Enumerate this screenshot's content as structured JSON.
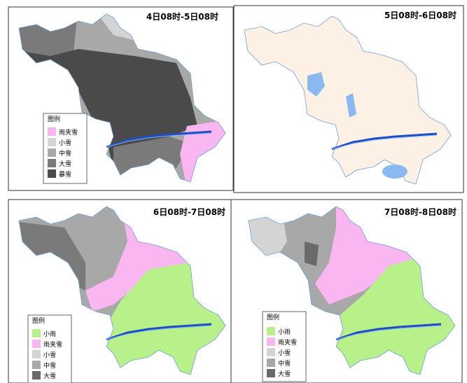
{
  "panels": [
    {
      "title": "4日08时-5日08时",
      "legend": {
        "title": "图例",
        "items": [
          "雨夹雪",
          "小雪",
          "中雪",
          "大雪",
          "暴雪"
        ]
      }
    },
    {
      "title": "5日08时-6日08时"
    },
    {
      "title": "6日08时-7日08时",
      "legend": {
        "title": "图例",
        "items": [
          "小雨",
          "雨夹雪",
          "小雪",
          "中雪",
          "大雪"
        ]
      }
    },
    {
      "title": "7日08时-8日08时",
      "legend": {
        "title": "图例",
        "items": [
          "小雨",
          "雨夹雪",
          "小雪",
          "中雪",
          "大雪"
        ]
      }
    }
  ]
}
